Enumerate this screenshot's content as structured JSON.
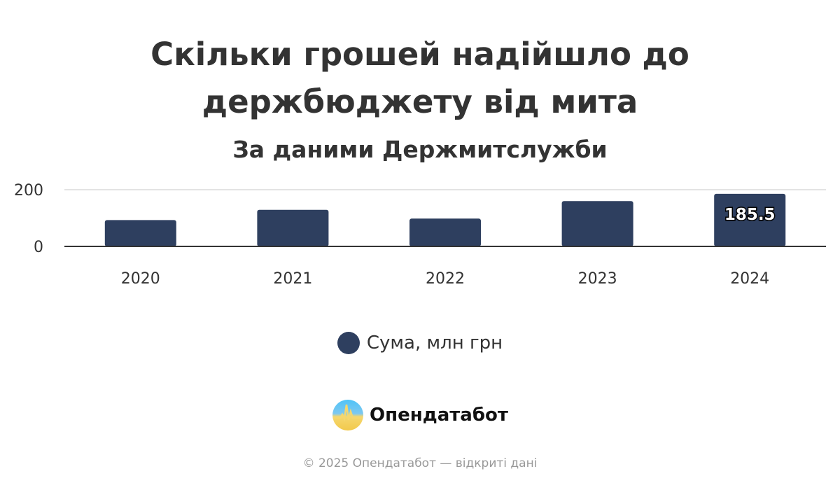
{
  "chart_data": {
    "type": "bar",
    "title_lines": [
      "Скільки грошей надійшло до",
      "держбюджету від мита"
    ],
    "subtitle": "За даними Держмитслужби",
    "categories": [
      "2020",
      "2021",
      "2022",
      "2023",
      "2024"
    ],
    "series": [
      {
        "name": "Сума, млн грн",
        "values": [
          93,
          129,
          98,
          160,
          185.5
        ],
        "color": "#2e3f5f"
      }
    ],
    "data_labels": [
      {
        "category": "2024",
        "text": "185.5"
      }
    ],
    "yticks": [
      "0",
      "200"
    ],
    "ylim": [
      0,
      200
    ],
    "grid": true,
    "legend_position": "bottom"
  },
  "branding": {
    "logo_text": "Опендатабот",
    "footer": "© 2025 Опендатабот — відкриті дані"
  }
}
